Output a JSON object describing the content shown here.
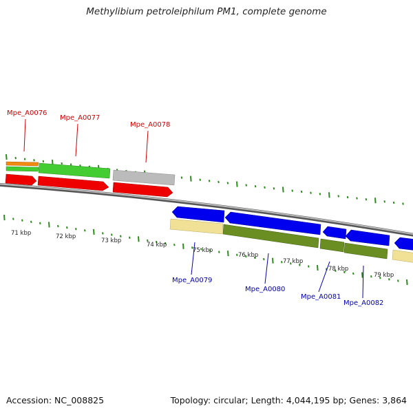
{
  "title": "Methylibium petroleiphilum PM1, complete genome",
  "footer": {
    "accession": "Accession: NC_008825",
    "summary": "Topology: circular; Length: 4,044,195 bp; Genes: 3,864"
  },
  "colors": {
    "top_label": "#cc0000",
    "bottom_label": "#0000aa",
    "tick": "#2e8b1e",
    "backbone": "#888888",
    "red_gene": "#ee0000",
    "blue_gene": "#0000ee",
    "light_green": "#44cc33",
    "orange": "#f08a10",
    "grey": "#bbbbbb",
    "khaki": "#f0e196",
    "olive": "#6b8e23"
  },
  "kbp_labels": [
    "71 kbp",
    "72 kbp",
    "73 kbp",
    "74 kbp",
    "75 kbp",
    "76 kbp",
    "77 kbp",
    "78 kbp",
    "79 kbp"
  ],
  "top_genes": [
    {
      "name": "Mpe_A0076"
    },
    {
      "name": "Mpe_A0077"
    },
    {
      "name": "Mpe_A0078"
    }
  ],
  "bottom_genes": [
    {
      "name": "Mpe_A0079"
    },
    {
      "name": "Mpe_A0080"
    },
    {
      "name": "Mpe_A0081"
    },
    {
      "name": "Mpe_A0082"
    }
  ]
}
